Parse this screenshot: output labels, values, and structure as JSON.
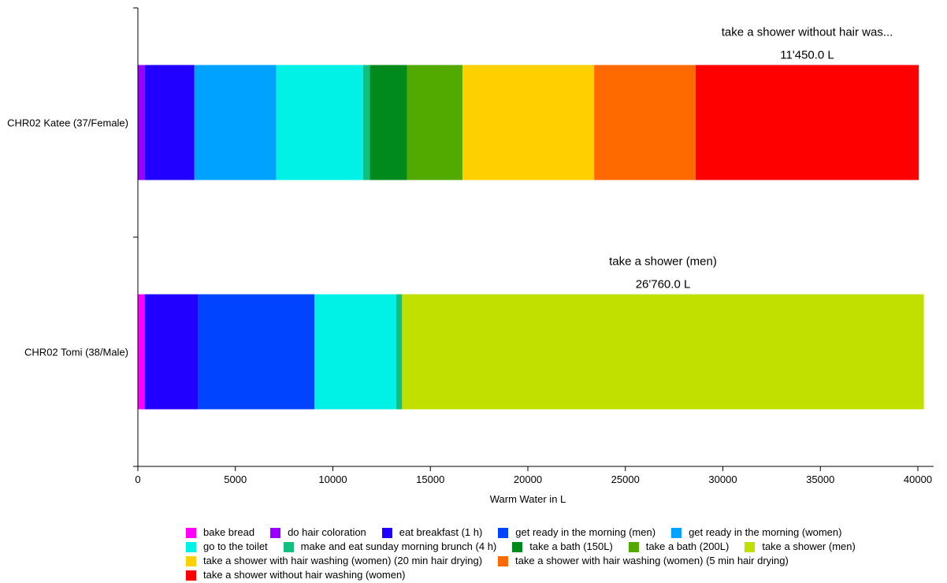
{
  "chart_data": {
    "type": "bar",
    "orientation": "horizontal",
    "stacked": true,
    "xlabel": "Warm Water in L",
    "xlim": [
      0,
      40000
    ],
    "xticks": [
      0,
      5000,
      10000,
      15000,
      20000,
      25000,
      30000,
      35000,
      40000
    ],
    "grid": false,
    "legend_position": "bottom",
    "categories": [
      "CHR02 Katee (37/Female)",
      "CHR02 Tomi (38/Male)"
    ],
    "series": [
      {
        "name": "bake bread",
        "color": "#ff00ff",
        "values": [
          0,
          350
        ]
      },
      {
        "name": "do hair coloration",
        "color": "#9900ff",
        "values": [
          350,
          0
        ]
      },
      {
        "name": "eat breakfast (1 h)",
        "color": "#2200ff",
        "values": [
          2550,
          2750
        ]
      },
      {
        "name": "get ready in the morning (men)",
        "color": "#0044ff",
        "values": [
          0,
          5950
        ]
      },
      {
        "name": "get ready in the morning (women)",
        "color": "#00a2ff",
        "values": [
          4200,
          0
        ]
      },
      {
        "name": "go to the toilet",
        "color": "#00f2e6",
        "values": [
          4450,
          4200
        ]
      },
      {
        "name": "make and eat sunday morning brunch (4 h)",
        "color": "#11c07e",
        "values": [
          350,
          300
        ]
      },
      {
        "name": "take a bath (150L)",
        "color": "#008a1c",
        "values": [
          1900,
          0
        ]
      },
      {
        "name": "take a bath (200L)",
        "color": "#52aa00",
        "values": [
          2850,
          0
        ]
      },
      {
        "name": "take a shower (men)",
        "color": "#c2e000",
        "values": [
          0,
          26760
        ]
      },
      {
        "name": "take a shower with hair washing (women) (20 min hair drying)",
        "color": "#ffd000",
        "values": [
          6750,
          0
        ]
      },
      {
        "name": "take a shower with hair washing (women) (5 min hair drying)",
        "color": "#ff6a00",
        "values": [
          5200,
          0
        ]
      },
      {
        "name": "take a shower without hair washing (women)",
        "color": "#ff0000",
        "values": [
          11450,
          0
        ]
      }
    ],
    "annotations": [
      {
        "category": "CHR02 Katee (37/Female)",
        "name": "take a shower without hair was...",
        "value": "11'450.0 L"
      },
      {
        "category": "CHR02 Tomi (38/Male)",
        "name": "take a shower (men)",
        "value": "26'760.0 L"
      }
    ]
  }
}
